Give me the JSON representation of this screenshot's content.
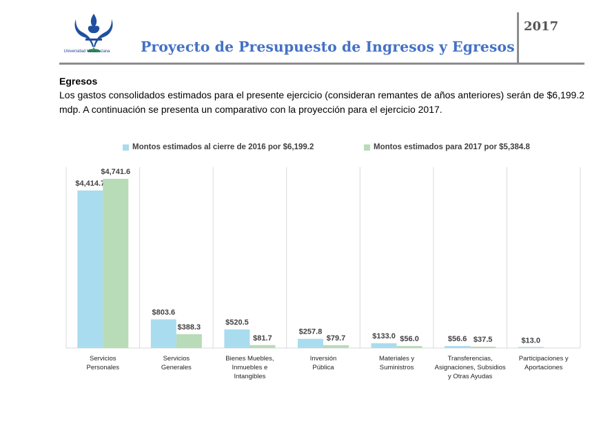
{
  "header": {
    "university": "Universidad Veracruzana",
    "title": "Proyecto de Presupuesto de Ingresos y Egresos",
    "year": "2017"
  },
  "section": {
    "heading": "Egresos",
    "paragraph": "Los gastos consolidados estimados para el presente ejercicio (consideran remantes de años anteriores) serán de $6,199.2 mdp. A continuación se presenta un comparativo con la proyección para el ejercicio 2017."
  },
  "colors": {
    "series_2016": "#a9dcee",
    "series_2017": "#b8dbb8",
    "title_blue": "#4472c4",
    "rule_gray": "#8c8c8c"
  },
  "chart_data": {
    "type": "bar",
    "categories": [
      [
        "Servicios",
        "Personales"
      ],
      [
        "Servicios",
        "Generales"
      ],
      [
        "Bienes Muebles,",
        "Inmuebles e",
        "Intangibles"
      ],
      [
        "Inversión",
        "Pública"
      ],
      [
        "Materiales y",
        "Suministros"
      ],
      [
        "Transferencias,",
        "Asignaciones, Subsidios",
        "y Otras Ayudas"
      ],
      [
        "Participaciones y",
        "Aportaciones"
      ]
    ],
    "series": [
      {
        "name": "Montos estimados al cierre de 2016 por $6,199.2",
        "values": [
          4414.7,
          803.6,
          520.5,
          257.8,
          133.0,
          56.6,
          13.0
        ],
        "labels": [
          "$4,414.7",
          "$803.6",
          "$520.5",
          "$257.8",
          "$133.0",
          "$56.6",
          "$13.0"
        ]
      },
      {
        "name": "Montos estimados para 2017 por $5,384.8",
        "values": [
          4741.6,
          388.3,
          81.7,
          79.7,
          56.0,
          37.5,
          null
        ],
        "labels": [
          "$4,741.6",
          "$388.3",
          "$81.7",
          "$79.7",
          "$56.0",
          "$37.5",
          ""
        ]
      }
    ],
    "ylim": [
      0,
      4741.6
    ],
    "grid": false,
    "category_separators": true,
    "legend_position": "top"
  }
}
